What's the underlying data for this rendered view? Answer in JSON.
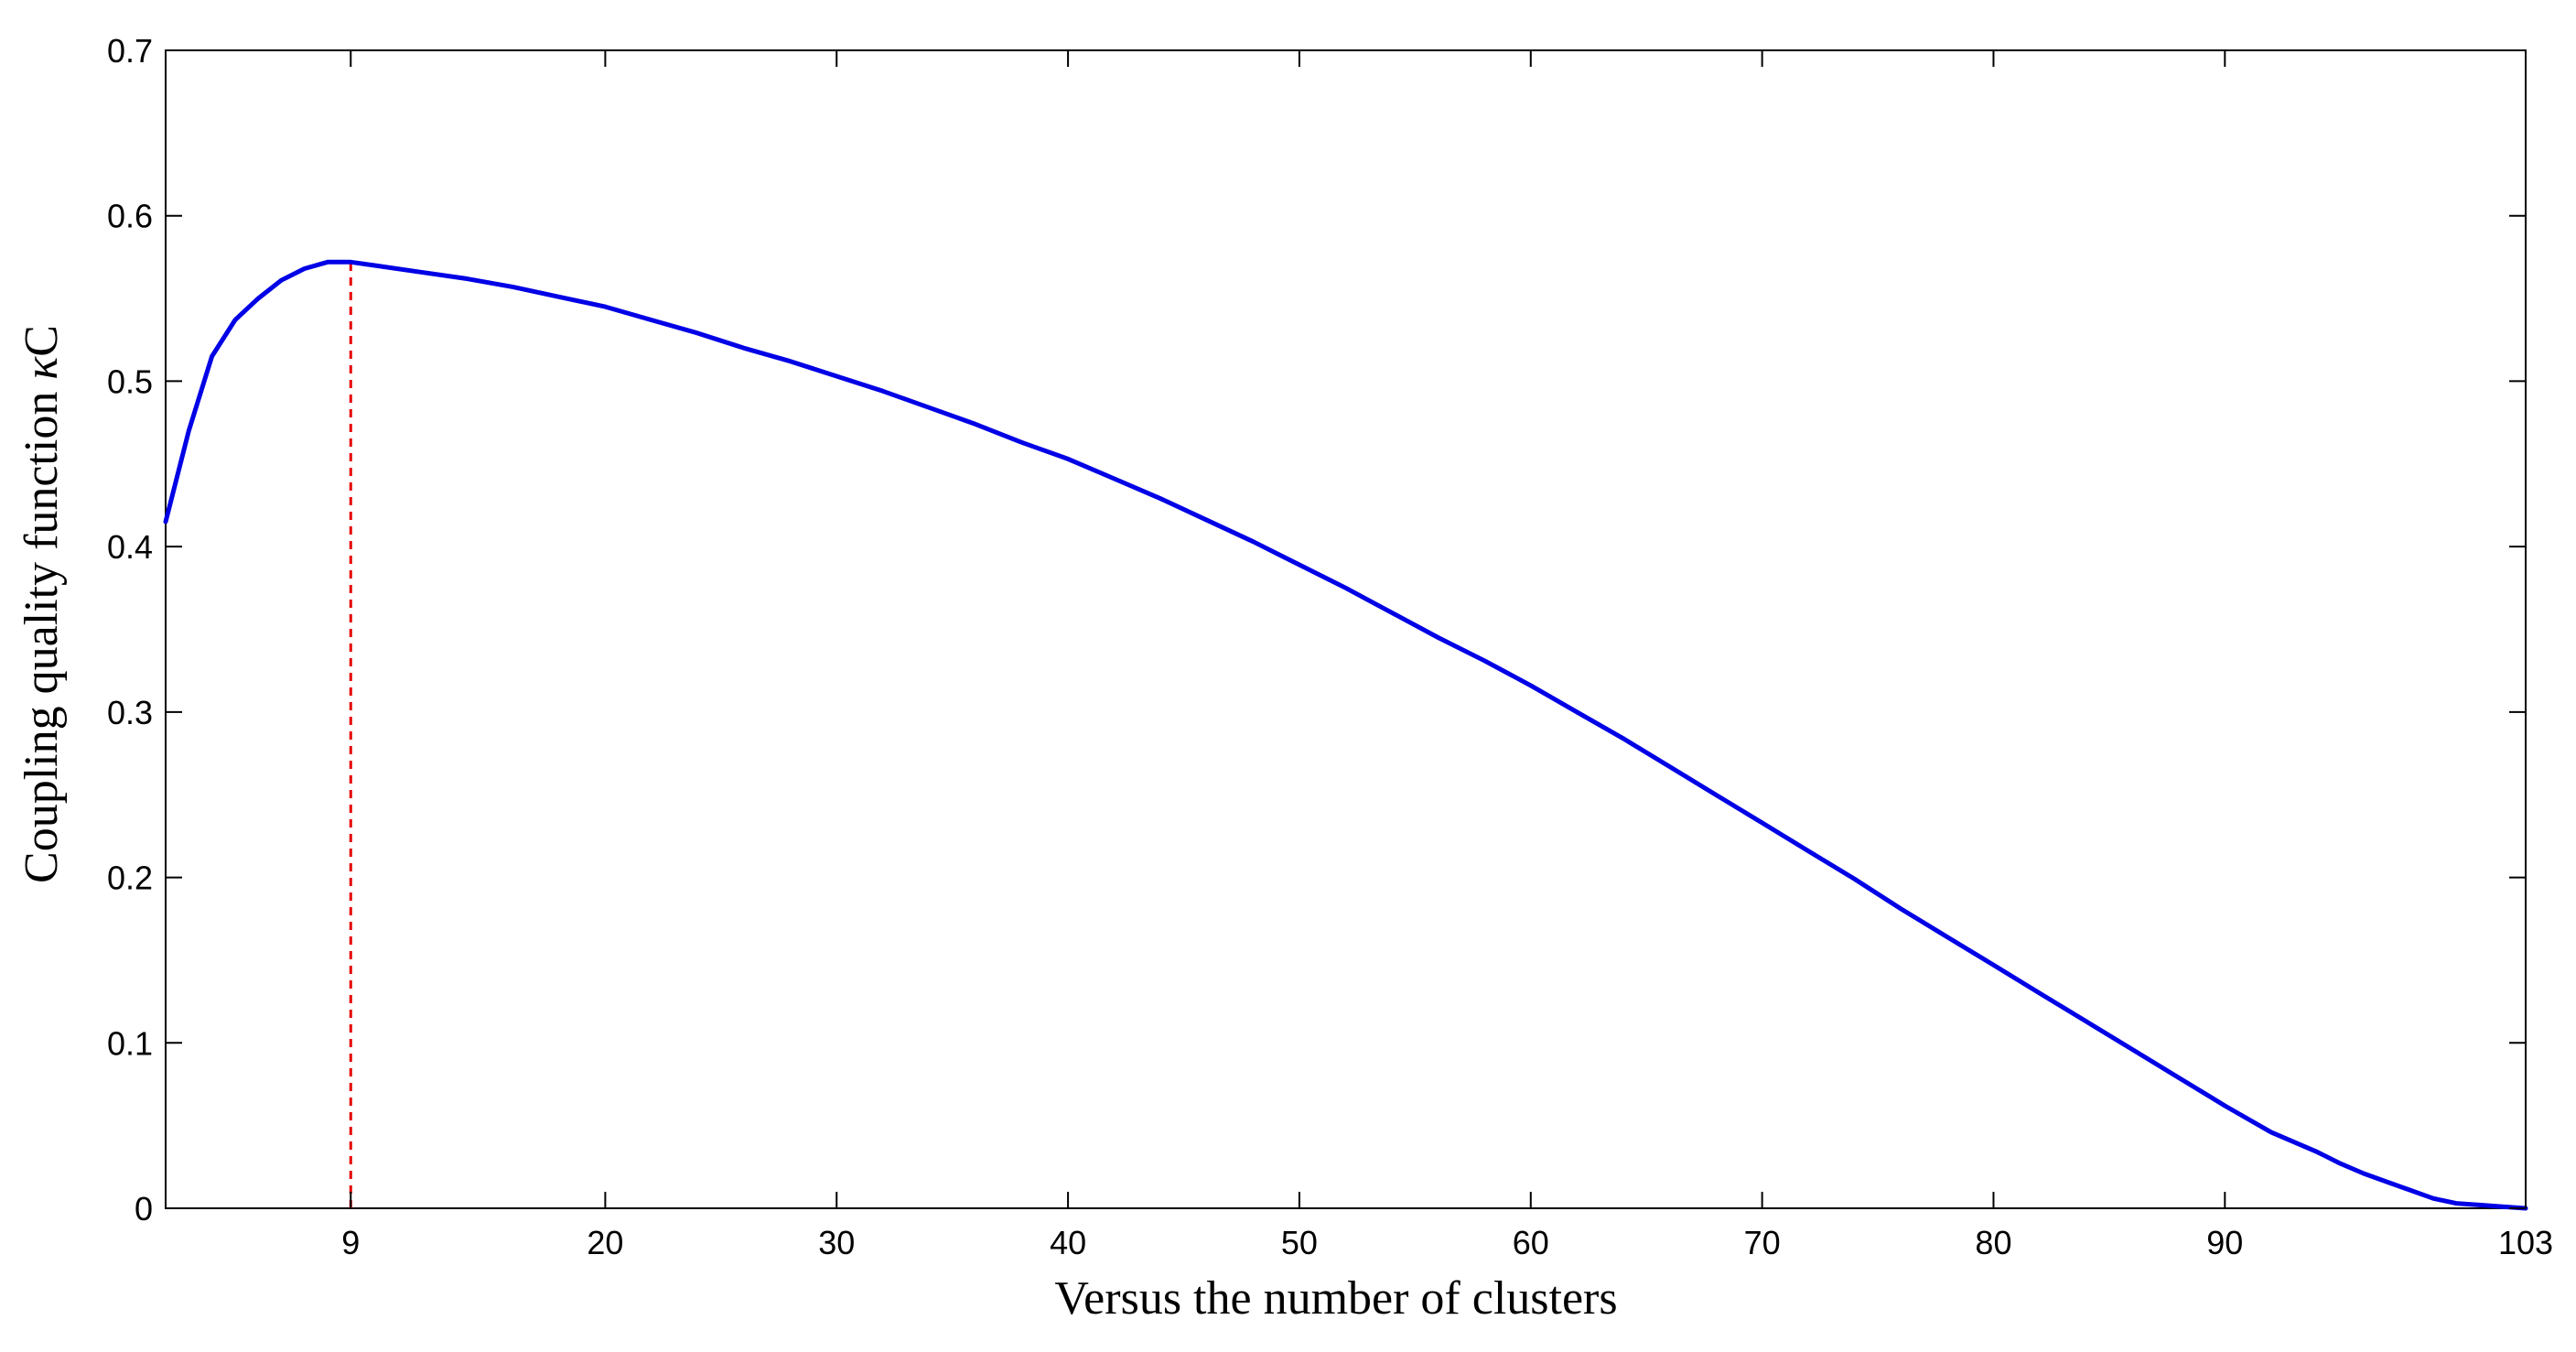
{
  "chart_data": {
    "type": "line",
    "title": "",
    "xlabel": "Versus the number of clusters",
    "ylabel_prefix": "Coupling quality function ",
    "ylabel_kappa": "κ",
    "ylabel_suffix": "C",
    "xlim": [
      1,
      103
    ],
    "ylim": [
      0,
      0.7
    ],
    "xticks": [
      9,
      20,
      30,
      40,
      50,
      60,
      70,
      80,
      90,
      103
    ],
    "yticks": [
      0,
      0.1,
      0.2,
      0.3,
      0.4,
      0.5,
      0.6,
      0.7
    ],
    "ytick_labels": [
      "0",
      "0.1",
      "0.2",
      "0.3",
      "0.4",
      "0.5",
      "0.6",
      "0.7"
    ],
    "grid": false,
    "series": [
      {
        "color": "#0000e6",
        "x": [
          1,
          2,
          3,
          4,
          5,
          6,
          7,
          8,
          9,
          10,
          12,
          14,
          16,
          18,
          20,
          22,
          24,
          26,
          28,
          30,
          32,
          34,
          36,
          38,
          40,
          42,
          44,
          46,
          48,
          50,
          52,
          54,
          56,
          58,
          60,
          62,
          64,
          66,
          68,
          70,
          72,
          74,
          76,
          78,
          80,
          82,
          84,
          86,
          88,
          90,
          92,
          94,
          95,
          96,
          97,
          98,
          99,
          100,
          101,
          102,
          103
        ],
        "y": [
          0.415,
          0.47,
          0.515,
          0.537,
          0.55,
          0.561,
          0.568,
          0.572,
          0.572,
          0.57,
          0.566,
          0.562,
          0.557,
          0.551,
          0.545,
          0.537,
          0.529,
          0.52,
          0.512,
          0.503,
          0.494,
          0.484,
          0.474,
          0.463,
          0.453,
          0.441,
          0.429,
          0.416,
          0.403,
          0.389,
          0.375,
          0.36,
          0.345,
          0.331,
          0.316,
          0.3,
          0.284,
          0.267,
          0.25,
          0.233,
          0.216,
          0.199,
          0.181,
          0.164,
          0.147,
          0.13,
          0.113,
          0.096,
          0.079,
          0.062,
          0.046,
          0.034,
          0.027,
          0.021,
          0.016,
          0.011,
          0.006,
          0.003,
          0.002,
          0.001,
          0.0
        ]
      }
    ],
    "marker_line": {
      "x": 9,
      "y_from": 0,
      "y_to": 0.572,
      "color": "#e60000",
      "style": "dashed"
    }
  }
}
